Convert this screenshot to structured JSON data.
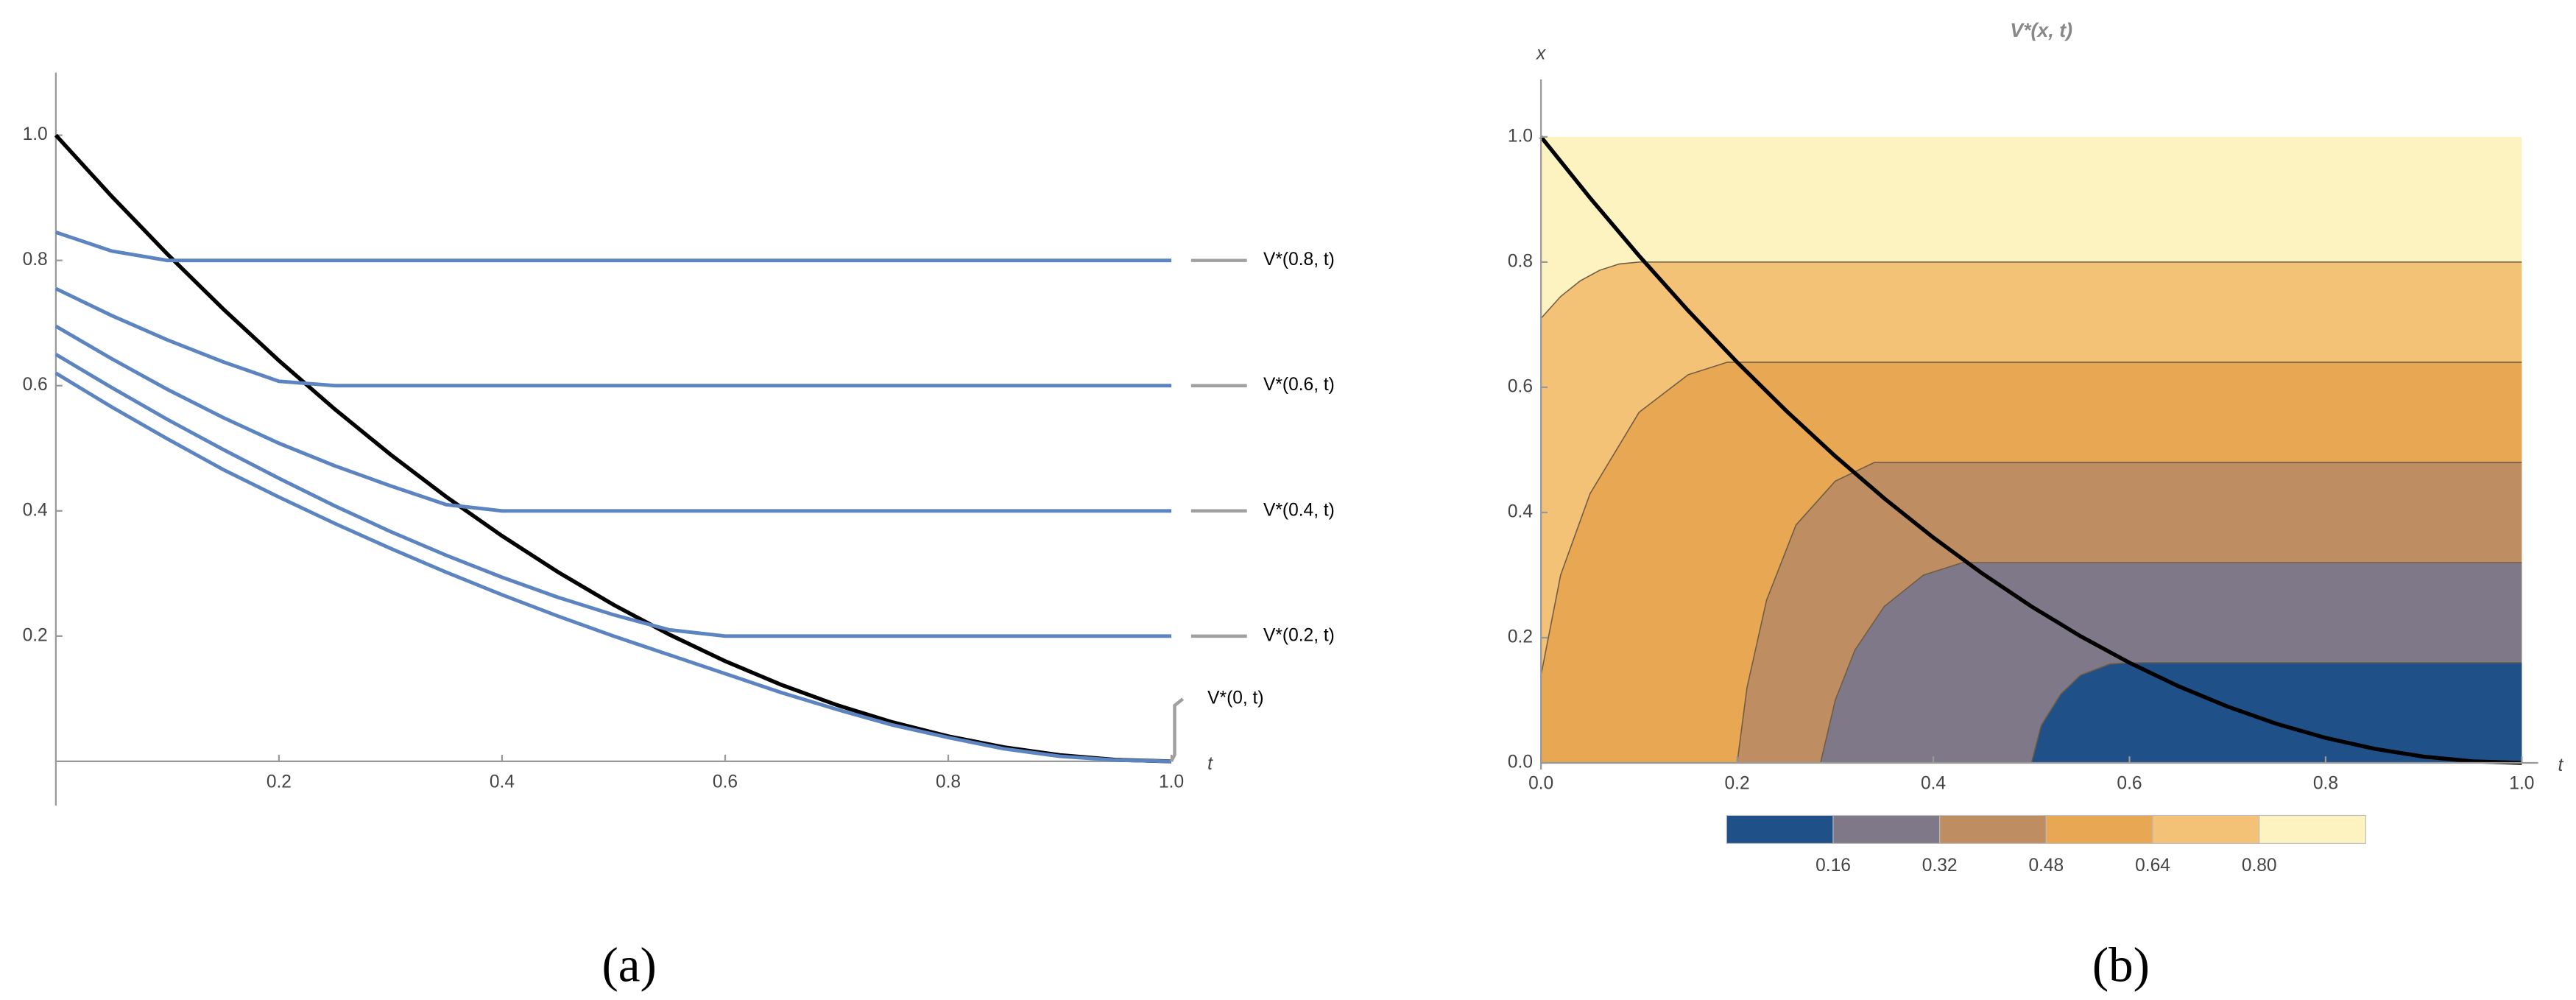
{
  "chart_data": [
    {
      "type": "line",
      "caption": "(a)",
      "xlabel": "t",
      "x": [
        0,
        0.05,
        0.1,
        0.15,
        0.2,
        0.25,
        0.3,
        0.35,
        0.4,
        0.45,
        0.5,
        0.55,
        0.6,
        0.65,
        0.7,
        0.75,
        0.8,
        0.85,
        0.9,
        0.95,
        1
      ],
      "xlim": [
        0,
        1
      ],
      "ylim": [
        -0.06,
        1.1
      ],
      "xticks": [
        0.2,
        0.4,
        0.6,
        0.8,
        {
          "value": 1,
          "label": "1.0"
        }
      ],
      "yticks": [
        0.2,
        0.4,
        0.6,
        0.8,
        {
          "value": 1,
          "label": "1.0"
        }
      ],
      "series": [
        {
          "color": "#000000",
          "values": [
            1,
            0.9025,
            0.81,
            0.7225,
            0.64,
            0.5625,
            0.49,
            0.4225,
            0.36,
            0.3025,
            0.25,
            0.2025,
            0.16,
            0.1225,
            0.09,
            0.0625,
            0.04,
            0.0225,
            0.01,
            0.0025,
            0
          ]
        },
        {
          "name": "V*(0.8, t)",
          "color": "#5b84c0",
          "values": [
            0.845,
            0.815,
            0.8,
            0.8,
            0.8,
            0.8,
            0.8,
            0.8,
            0.8,
            0.8,
            0.8,
            0.8,
            0.8,
            0.8,
            0.8,
            0.8,
            0.8,
            0.8,
            0.8,
            0.8,
            0.8
          ]
        },
        {
          "name": "V*(0.6, t)",
          "color": "#5b84c0",
          "values": [
            0.755,
            0.712,
            0.673,
            0.638,
            0.607,
            0.6,
            0.6,
            0.6,
            0.6,
            0.6,
            0.6,
            0.6,
            0.6,
            0.6,
            0.6,
            0.6,
            0.6,
            0.6,
            0.6,
            0.6,
            0.6
          ]
        },
        {
          "name": "V*(0.4, t)",
          "color": "#5b84c0",
          "values": [
            0.695,
            0.643,
            0.594,
            0.549,
            0.508,
            0.472,
            0.44,
            0.41,
            0.4,
            0.4,
            0.4,
            0.4,
            0.4,
            0.4,
            0.4,
            0.4,
            0.4,
            0.4,
            0.4,
            0.4,
            0.4
          ]
        },
        {
          "name": "V*(0.2, t)",
          "color": "#5b84c0",
          "values": [
            0.65,
            0.597,
            0.546,
            0.498,
            0.452,
            0.408,
            0.367,
            0.329,
            0.294,
            0.262,
            0.234,
            0.21,
            0.2,
            0.2,
            0.2,
            0.2,
            0.2,
            0.2,
            0.2,
            0.2,
            0.2
          ]
        },
        {
          "name": "V*(0, t)",
          "color": "#5b84c0",
          "values": [
            0.62,
            0.566,
            0.515,
            0.466,
            0.422,
            0.38,
            0.34,
            0.302,
            0.266,
            0.232,
            0.2,
            0.17,
            0.14,
            0.11,
            0.083,
            0.058,
            0.038,
            0.02,
            0.008,
            0.002,
            0
          ]
        }
      ]
    },
    {
      "type": "contour",
      "caption": "(b)",
      "title": "V*(x, t)",
      "xlabel": "t",
      "ylabel": "x",
      "xlim": [
        0,
        1
      ],
      "ylim": [
        0,
        1
      ],
      "xticks": [
        {
          "value": 0,
          "label": "0.0"
        },
        0.2,
        0.4,
        0.6,
        0.8,
        {
          "value": 1,
          "label": "1.0"
        }
      ],
      "yticks": [
        {
          "value": 0,
          "label": "0.0"
        },
        0.2,
        0.4,
        0.6,
        0.8,
        {
          "value": 1,
          "label": "1.0"
        }
      ],
      "levels": [
        0.16,
        0.32,
        0.48,
        0.64,
        {
          "value": 0.8,
          "label": "0.80"
        }
      ],
      "colorbar_lim": [
        0,
        0.96
      ],
      "colors": [
        "#1f5088",
        "#7f7888",
        "#be8e62",
        "#e8a752",
        "#f4c276",
        "#fdf3c0"
      ],
      "contours": [
        {
          "x": [
            0.5,
            0.51,
            0.53,
            0.55,
            0.58,
            0.6,
            1
          ],
          "values": [
            0,
            0.06,
            0.11,
            0.14,
            0.158,
            0.16,
            0.16
          ]
        },
        {
          "x": [
            0.285,
            0.3,
            0.32,
            0.35,
            0.39,
            0.43,
            1
          ],
          "values": [
            0,
            0.1,
            0.18,
            0.25,
            0.3,
            0.32,
            0.32
          ]
        },
        {
          "x": [
            0.2,
            0.21,
            0.23,
            0.26,
            0.3,
            0.34,
            1
          ],
          "values": [
            0,
            0.12,
            0.26,
            0.38,
            0.45,
            0.48,
            0.48
          ]
        },
        {
          "x": [
            0,
            0.02,
            0.05,
            0.1,
            0.15,
            0.19,
            1
          ],
          "values": [
            0.14,
            0.3,
            0.43,
            0.56,
            0.62,
            0.64,
            0.64
          ]
        },
        {
          "x": [
            0,
            0.02,
            0.04,
            0.06,
            0.08,
            0.1,
            1
          ],
          "values": [
            0.71,
            0.745,
            0.77,
            0.787,
            0.797,
            0.8,
            0.8
          ]
        }
      ],
      "series": [
        {
          "color": "#000000",
          "x": [
            0,
            0.05,
            0.1,
            0.15,
            0.2,
            0.25,
            0.3,
            0.35,
            0.4,
            0.45,
            0.5,
            0.55,
            0.6,
            0.65,
            0.7,
            0.75,
            0.8,
            0.85,
            0.9,
            0.95,
            1
          ],
          "values": [
            1,
            0.9025,
            0.81,
            0.7225,
            0.64,
            0.5625,
            0.49,
            0.4225,
            0.36,
            0.3025,
            0.25,
            0.2025,
            0.16,
            0.1225,
            0.09,
            0.0625,
            0.04,
            0.0225,
            0.01,
            0.0025,
            0
          ]
        }
      ]
    }
  ]
}
